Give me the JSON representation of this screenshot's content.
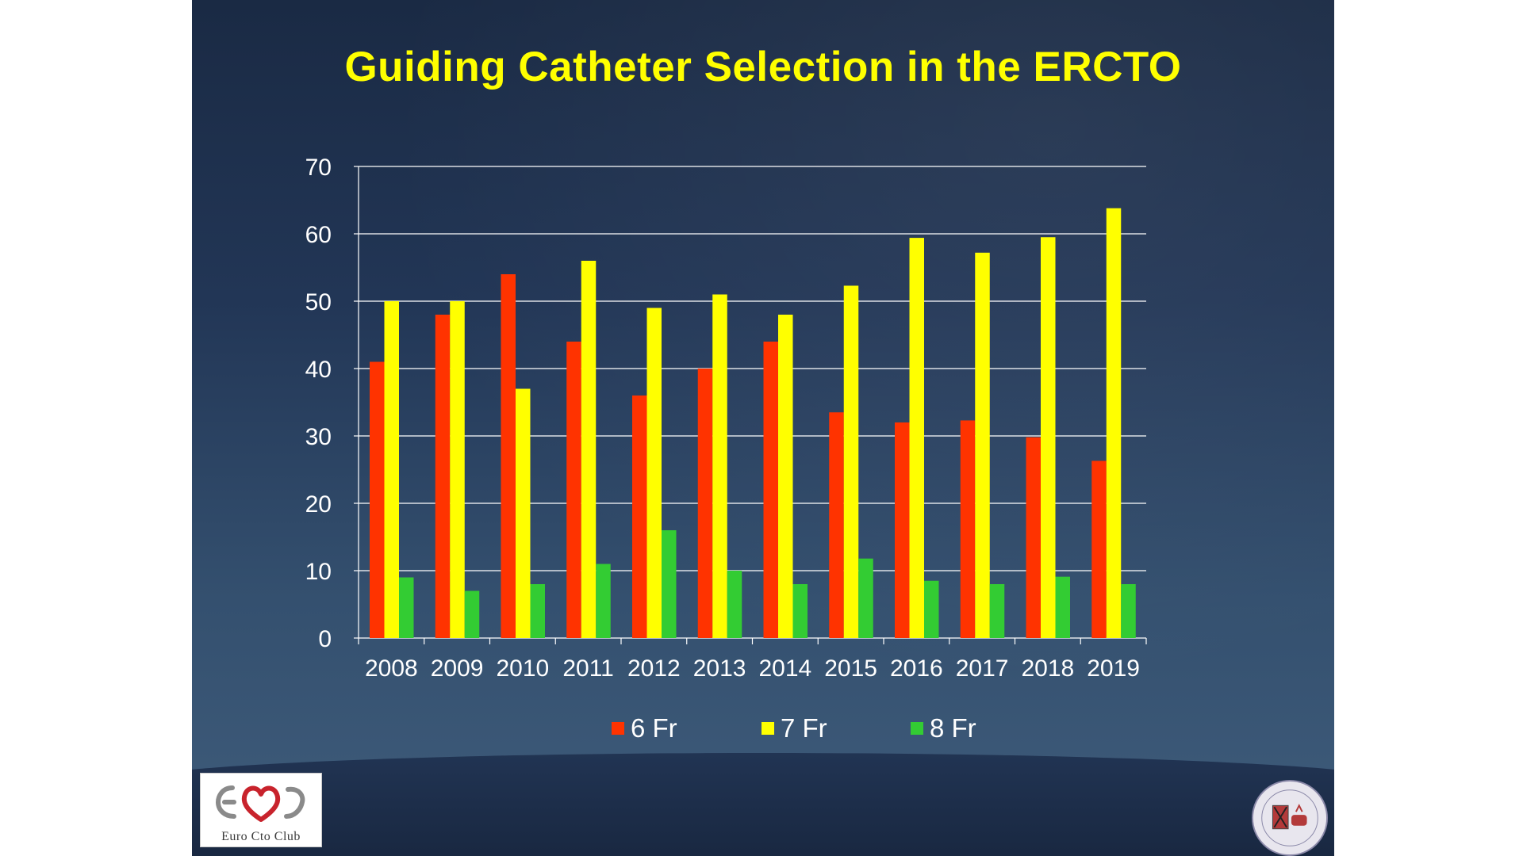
{
  "chart_data": {
    "type": "bar",
    "title": "Guiding Catheter Selection in the ERCTO",
    "categories": [
      "2008",
      "2009",
      "2010",
      "2011",
      "2012",
      "2013",
      "2014",
      "2015",
      "2016",
      "2017",
      "2018",
      "2019"
    ],
    "series": [
      {
        "name": "6 Fr",
        "color": "#ff3300",
        "values": [
          41,
          48,
          54,
          44,
          36,
          40,
          44,
          33.5,
          32,
          32.3,
          29.8,
          26.3
        ]
      },
      {
        "name": "7 Fr",
        "color": "#ffff00",
        "values": [
          50,
          50,
          37,
          56,
          49,
          51,
          48,
          52.3,
          59.4,
          57.2,
          59.5,
          63.8
        ]
      },
      {
        "name": "8 Fr",
        "color": "#33cc33",
        "values": [
          9,
          7,
          8,
          11,
          16,
          10,
          8,
          11.8,
          8.5,
          8,
          9.1,
          8
        ]
      }
    ],
    "yticks": [
      "0",
      "10",
      "20",
      "30",
      "40",
      "50",
      "60",
      "70"
    ],
    "ylim": [
      0,
      70
    ],
    "xlabel": "",
    "ylabel": "",
    "grid": true,
    "legend_position": "bottom"
  },
  "logos": {
    "left_logo_text": "Euro Cto Club",
    "seal_name": "university-seal-icon"
  }
}
